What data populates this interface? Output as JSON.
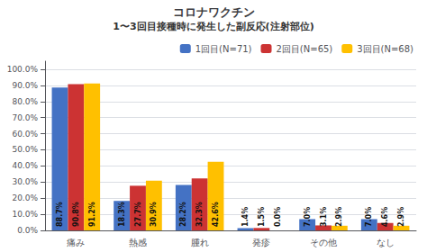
{
  "chart_data": {
    "type": "bar",
    "title": "コロナワクチン",
    "subtitle": "1〜3回目接種時に発生した副反応(注射部位)",
    "categories": [
      "痛み",
      "熱感",
      "腫れ",
      "発疹",
      "その他",
      "なし"
    ],
    "series": [
      {
        "name": "1回目(N=71)",
        "color": "#4472C4",
        "values": [
          88.7,
          18.3,
          28.2,
          1.4,
          7.0,
          7.0
        ],
        "value_labels": [
          "88.7%",
          "18.3%",
          "28.2%",
          "1.4%",
          "7.0%",
          "7.0%"
        ]
      },
      {
        "name": "2回目(N=65)",
        "color": "#CC3333",
        "values": [
          90.8,
          27.7,
          32.3,
          1.5,
          3.1,
          4.6
        ],
        "value_labels": [
          "90.8%",
          "27.7%",
          "32.3%",
          "1.5%",
          "3.1%",
          "4.6%"
        ]
      },
      {
        "name": "3回目(N=68)",
        "color": "#FFC000",
        "values": [
          91.2,
          30.9,
          42.6,
          0.0,
          2.9,
          2.9
        ],
        "value_labels": [
          "91.2%",
          "30.9%",
          "42.6%",
          "0.0%",
          "2.9%",
          "2.9%"
        ]
      }
    ],
    "ylim": [
      0,
      105
    ],
    "yticks": [
      {
        "value": 0,
        "label": "0.0%"
      },
      {
        "value": 10,
        "label": "10.0%"
      },
      {
        "value": 20,
        "label": "20.0%"
      },
      {
        "value": 30,
        "label": "30.0%"
      },
      {
        "value": 40,
        "label": "40.0%"
      },
      {
        "value": 50,
        "label": "50.0%"
      },
      {
        "value": 60,
        "label": "60.0%"
      },
      {
        "value": 70,
        "label": "70.0%"
      },
      {
        "value": 80,
        "label": "80.0%"
      },
      {
        "value": 90,
        "label": "90.0%"
      },
      {
        "value": 100,
        "label": "100.0%"
      }
    ],
    "grid": true,
    "legend": "upper right",
    "data_labels": true
  }
}
